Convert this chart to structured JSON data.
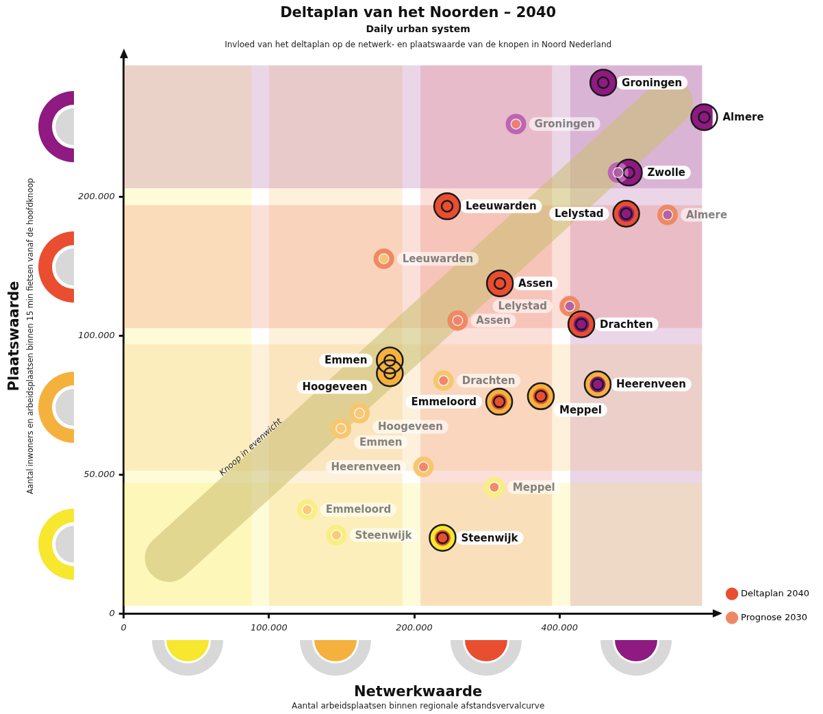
{
  "chart_data": {
    "type": "scatter",
    "title": "Deltaplan van het Noorden – 2040",
    "subtitle": "Daily urban system",
    "xlabel": "Netwerkwaarde",
    "ylabel": "Plaatswaarde",
    "log": "xy",
    "grid": false,
    "legend": "right",
    "marker": "circle",
    "xlim": [
      0,
      830000
    ],
    "xticks": [
      0,
      {
        "value": 100000,
        "label": "100.000"
      },
      {
        "value": 200000,
        "label": "200.000"
      },
      {
        "value": 400000,
        "label": "400.000"
      }
    ],
    "ylim": [
      0,
      400000
    ],
    "yticks": [
      0,
      {
        "value": 50000,
        "label": "50.000"
      },
      {
        "value": 100000,
        "label": "100.000"
      },
      {
        "value": 200000,
        "label": "200.000"
      }
    ],
    "bands": [
      {
        "axis": "x",
        "from": 50000,
        "to": 92000,
        "color": "#f7e72e"
      },
      {
        "axis": "x",
        "from": 100000,
        "to": 189000,
        "color": "#f5b13d"
      },
      {
        "axis": "x",
        "from": 206000,
        "to": 386000,
        "color": "#e84e2f"
      },
      {
        "axis": "x",
        "from": 421000,
        "to": 790000,
        "color": "#8e1a82"
      },
      {
        "axis": "y",
        "from": 26000,
        "to": 48000,
        "color": "#f7e72e"
      },
      {
        "axis": "y",
        "from": 51000,
        "to": 96000,
        "color": "#f5b13d"
      },
      {
        "axis": "y",
        "from": 104000,
        "to": 192000,
        "color": "#e84e2f"
      },
      {
        "axis": "y",
        "from": 209000,
        "to": 386000,
        "color": "#8e1a82"
      }
    ],
    "series": [
      {
        "type": "line",
        "marker": "none",
        "color": "#cbbd6e",
        "x": [
          62000,
          675000
        ],
        "values": [
          33000,
          320000
        ]
      },
      {
        "name": "Deltaplan 2040",
        "type": "scatter",
        "color": "#e84e2f",
        "x": [
          493000,
          798000,
          557000,
          234000,
          550000,
          301000,
          444000,
          178000,
          178000,
          480000,
          366000,
          300000,
          229000
        ],
        "values": [
          354000,
          298000,
          226000,
          191000,
          184000,
          130000,
          106000,
          88500,
          83000,
          78500,
          74000,
          72000,
          36500
        ],
        "colors": [
          "#8e1a82",
          "#8e1a82",
          "#8e1a82",
          "#e84e2f",
          "#e84e2f",
          "#e84e2f",
          "#e84e2f",
          "#f5b13d",
          "#f5b13d",
          "#f5b13d",
          "#f5b13d",
          "#f5b13d",
          "#f7e72e"
        ]
      },
      {
        "name": "Prognose 2030",
        "type": "scatter",
        "color": "#ee8a63",
        "x": [
          325000,
          670000,
          529000,
          173000,
          420000,
          246000,
          230000,
          141000,
          154000,
          209000,
          293000,
          120000,
          138000
        ],
        "values": [
          288000,
          183000,
          226000,
          147000,
          116000,
          108000,
          80000,
          63000,
          68000,
          52000,
          47000,
          42000,
          37000
        ],
        "colors": [
          "#bb66b3",
          "#ee8a63",
          "#bb66b3",
          "#ee8a63",
          "#ee8a63",
          "#ee8a63",
          "#f7c76f",
          "#f7c76f",
          "#f7c76f",
          "#f7c76f",
          "#f9ee82",
          "#f9ee82",
          "#f9ee82"
        ]
      }
    ],
    "annotations": [
      "Invloed van het deltaplan op de netwerk- en plaatswaarde van de knopen in Noord Nederland",
      "Aantal inwoners en arbeidsplaatsen binnen 15 min fietsen vanaf de hoofdknoop",
      "Aantal arbeidsplaatsen binnen regionale afstandsvervalcurve",
      "Knoop in evenwicht",
      {
        "text": "Groningen",
        "x": 493000,
        "y": 354000
      },
      {
        "text": "Almere",
        "x": 798000,
        "y": 298000
      },
      {
        "text": "Zwolle",
        "x": 557000,
        "y": 226000
      },
      {
        "text": "Leeuwarden",
        "x": 234000,
        "y": 191000
      },
      {
        "text": "Lelystad",
        "x": 550000,
        "y": 184000
      },
      {
        "text": "Assen",
        "x": 301000,
        "y": 130000
      },
      {
        "text": "Drachten",
        "x": 444000,
        "y": 106000
      },
      {
        "text": "Emmen",
        "x": 178000,
        "y": 88500
      },
      {
        "text": "Hoogeveen",
        "x": 178000,
        "y": 83000
      },
      {
        "text": "Heerenveen",
        "x": 480000,
        "y": 78500
      },
      {
        "text": "Meppel",
        "x": 366000,
        "y": 74000
      },
      {
        "text": "Emmeloord",
        "x": 300000,
        "y": 72000
      },
      {
        "text": "Steenwijk",
        "x": 229000,
        "y": 36500
      },
      {
        "text": "Groningen",
        "x": 325000,
        "y": 288000
      },
      {
        "text": "Almere",
        "x": 670000,
        "y": 183000
      },
      {
        "text": "Leeuwarden",
        "x": 173000,
        "y": 147000
      },
      {
        "text": "Lelystad",
        "x": 420000,
        "y": 116000
      },
      {
        "text": "Assen",
        "x": 246000,
        "y": 108000
      },
      {
        "text": "Drachten",
        "x": 230000,
        "y": 80000
      },
      {
        "text": "Emmen",
        "x": 141000,
        "y": 63000
      },
      {
        "text": "Hoogeveen",
        "x": 154000,
        "y": 68000
      },
      {
        "text": "Heerenveen",
        "x": 209000,
        "y": 52000
      },
      {
        "text": "Meppel",
        "x": 293000,
        "y": 47000
      },
      {
        "text": "Emmeloord",
        "x": 120000,
        "y": 42000
      },
      {
        "text": "Steenwijk",
        "x": 138000,
        "y": 37000
      }
    ]
  }
}
